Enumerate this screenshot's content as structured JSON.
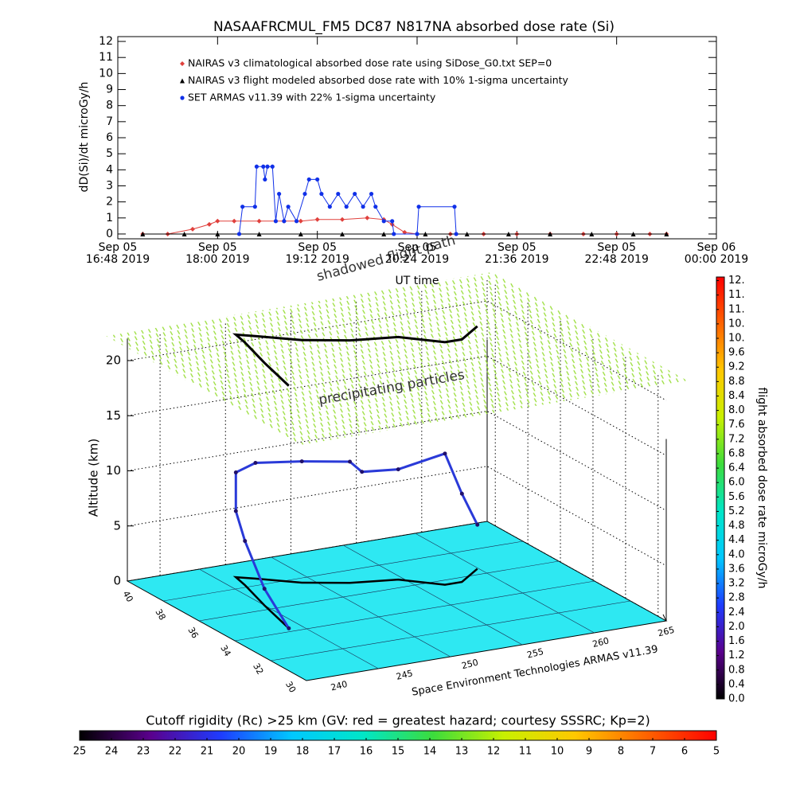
{
  "chart_data": [
    {
      "type": "line",
      "title": "NASAAFRCMUL_FM5 DC87 N817NA absorbed dose rate (Si)",
      "ylabel": "dD(Si)/dt microGy/h",
      "xlabel": "UT time",
      "xlim": [
        16.8,
        24.0
      ],
      "xticks": [
        {
          "value": 16.8,
          "label": "Sep 05 16:48 2019"
        },
        {
          "value": 18.0,
          "label": "Sep 05 18:00 2019"
        },
        {
          "value": 19.2,
          "label": "Sep 05 19:12 2019"
        },
        {
          "value": 20.4,
          "label": "Sep 05 20:24 2019"
        },
        {
          "value": 21.6,
          "label": "Sep 05 21:36 2019"
        },
        {
          "value": 22.8,
          "label": "Sep 05 22:48 2019"
        },
        {
          "value": 24.0,
          "label": "Sep 06 00:00 2019"
        }
      ],
      "ylim": [
        -0.3,
        12.3
      ],
      "yticks": [
        0,
        1,
        2,
        3,
        4,
        5,
        6,
        7,
        8,
        9,
        10,
        11,
        12
      ],
      "series": [
        {
          "name": "NAIRAS v3 climatological absorbed dose rate using SiDose_G0.txt SEP=0",
          "color": "#e0403c",
          "marker": "diamond",
          "x": [
            17.1,
            17.4,
            17.7,
            17.9,
            18.0,
            18.2,
            18.5,
            18.8,
            19.0,
            19.2,
            19.5,
            19.8,
            20.0,
            20.1,
            20.25,
            20.4,
            20.8,
            21.2,
            21.6,
            22.0,
            22.4,
            22.8,
            23.2,
            23.4
          ],
          "values": [
            0,
            0,
            0.3,
            0.6,
            0.8,
            0.8,
            0.8,
            0.8,
            0.8,
            0.9,
            0.9,
            1.0,
            0.9,
            0.6,
            0.1,
            0,
            0,
            0,
            0,
            0,
            0,
            0,
            0,
            0
          ]
        },
        {
          "name": "NAIRAS v3 flight modeled absorbed dose rate with 10% 1-sigma uncertainty",
          "color": "#000000",
          "marker": "triangle",
          "x": [
            17.1,
            17.6,
            18.0,
            18.5,
            19.0,
            19.5,
            20.0,
            20.5,
            21.0,
            21.5,
            22.0,
            22.5,
            23.0,
            23.4
          ],
          "values": [
            0,
            0,
            0,
            0,
            0,
            0,
            0,
            0,
            0,
            0,
            0,
            0,
            0,
            0
          ]
        },
        {
          "name": "SET ARMAS v11.39 with 22% 1-sigma uncertainty",
          "color": "#1030e8",
          "marker": "circle",
          "x": [
            18.26,
            18.3,
            18.45,
            18.47,
            18.55,
            18.57,
            18.6,
            18.66,
            18.7,
            18.74,
            18.8,
            18.85,
            18.95,
            19.05,
            19.1,
            19.2,
            19.25,
            19.35,
            19.45,
            19.55,
            19.65,
            19.75,
            19.85,
            19.9,
            20.0,
            20.1,
            20.12,
            20.4,
            20.42,
            20.85,
            20.87
          ],
          "values": [
            0,
            1.7,
            1.7,
            4.2,
            4.2,
            3.4,
            4.2,
            4.2,
            0.8,
            2.5,
            0.8,
            1.7,
            0.8,
            2.5,
            3.4,
            3.4,
            2.5,
            1.7,
            2.5,
            1.7,
            2.5,
            1.7,
            2.5,
            1.7,
            0.8,
            0.8,
            0,
            0,
            1.7,
            1.7,
            0
          ]
        }
      ]
    },
    {
      "type": "scatter3d",
      "zlabel": "Altitude (km)",
      "xlabel": "Space Environment Technologies ARMAS v11.39",
      "annotations": [
        "precipitating particles",
        "shadowed flight path"
      ],
      "xlim": [
        237.5,
        265
      ],
      "xticks": [
        240,
        245,
        250,
        255,
        260,
        265
      ],
      "ylim": [
        40.5,
        29.5
      ],
      "yticks": [
        40,
        38,
        36,
        34,
        32,
        30
      ],
      "zlim": [
        0,
        22
      ],
      "zticks": [
        0,
        5,
        10,
        15,
        20
      ],
      "floor_color": "#2ee8f2",
      "layer_color": "#9ade3a",
      "series": [
        {
          "color": "#2a3ad8",
          "lon": [
            242.0,
            243.0,
            244.0,
            244.3,
            244.3,
            245.3,
            247.6,
            250.4,
            251.2,
            253.6,
            255.8,
            257.1,
            259.4
          ],
          "lat": [
            34.2,
            36.5,
            38.5,
            39.3,
            39.3,
            38.9,
            37.9,
            37.2,
            37.1,
            36.8,
            35.7,
            35.7,
            36.6
          ],
          "alt": [
            0,
            1.5,
            4,
            6,
            9.5,
            10.5,
            11,
            11,
            10,
            10,
            11.9,
            8,
            4
          ]
        }
      ]
    },
    {
      "type": "colorbar",
      "orientation": "vertical",
      "label": "flight absorbed dose rate microGy/h",
      "colormap": [
        "#000000",
        "#5a008c",
        "#1e3cff",
        "#00c8ff",
        "#00e6c8",
        "#3cdc3c",
        "#c8f000",
        "#ffc800",
        "#ff6400",
        "#ff0000"
      ],
      "lim": [
        0,
        11.7
      ],
      "ticks": [
        {
          "value": 0,
          "label": "0.0"
        },
        0.4,
        0.8,
        1.2,
        1.6,
        {
          "value": 2,
          "label": "2.0"
        },
        2.4,
        2.8,
        3.2,
        3.6,
        {
          "value": 4,
          "label": "4.0"
        },
        4.4,
        4.8,
        5.2,
        5.6,
        {
          "value": 6,
          "label": "6.0"
        },
        6.4,
        6.8,
        7.2,
        7.6,
        {
          "value": 8,
          "label": "8.0"
        },
        8.4,
        8.8,
        9.2,
        9.6,
        {
          "value": 10,
          "label": "10."
        },
        {
          "value": 10.4,
          "label": "10."
        },
        {
          "value": 10.8,
          "label": "11."
        },
        {
          "value": 11.2,
          "label": "11."
        },
        {
          "value": 11.6,
          "label": "12."
        }
      ]
    },
    {
      "type": "colorbar",
      "orientation": "horizontal",
      "label": "Cutoff rigidity (Rc) >25 km (GV: red = greatest hazard; courtesy SSSRC; Kp=2)",
      "colormap": [
        "#000000",
        "#5a008c",
        "#1e3cff",
        "#00c8ff",
        "#00e6c8",
        "#3cdc3c",
        "#c8f000",
        "#ffc800",
        "#ff6400",
        "#ff0000"
      ],
      "lim": [
        25,
        5
      ],
      "ticks": [
        25,
        24,
        23,
        22,
        21,
        20,
        19,
        18,
        17,
        16,
        15,
        14,
        13,
        12,
        11,
        10,
        9,
        8,
        7,
        6,
        5
      ]
    }
  ]
}
